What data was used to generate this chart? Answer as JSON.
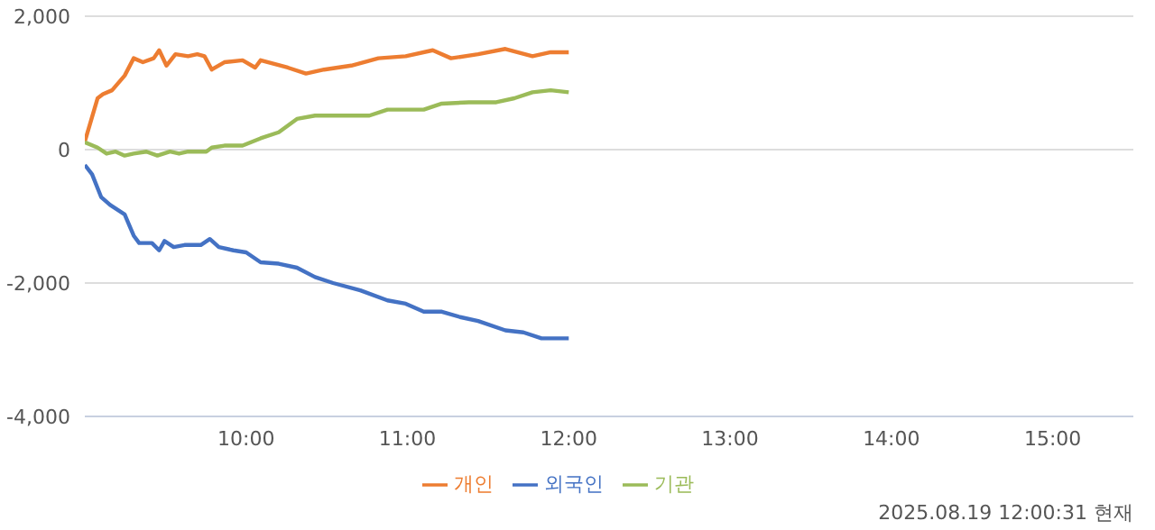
{
  "chart_data": {
    "type": "line",
    "xlim": [
      9,
      15.5
    ],
    "xticks": [
      {
        "value": 10,
        "label": "10:00"
      },
      {
        "value": 11,
        "label": "11:00"
      },
      {
        "value": 12,
        "label": "12:00"
      },
      {
        "value": 13,
        "label": "13:00"
      },
      {
        "value": 14,
        "label": "14:00"
      },
      {
        "value": 15,
        "label": "15:00"
      }
    ],
    "ylim": [
      -4000,
      2000
    ],
    "yticks": [
      {
        "value": -4000,
        "label": "-4,000"
      },
      {
        "value": -2000,
        "label": "-2,000"
      },
      0,
      {
        "value": 2000,
        "label": "2,000"
      }
    ],
    "grid": "y",
    "legend": "bottom",
    "marker": "none",
    "line_style": "solid",
    "series": [
      {
        "name": "개인",
        "color": "#ed7d31",
        "x": [
          9.0,
          9.079,
          9.112,
          9.169,
          9.247,
          9.303,
          9.36,
          9.427,
          9.461,
          9.506,
          9.562,
          9.64,
          9.697,
          9.742,
          9.787,
          9.865,
          9.978,
          10.056,
          10.09,
          10.258,
          10.371,
          10.483,
          10.652,
          10.82,
          10.989,
          11.157,
          11.27,
          11.438,
          11.607,
          11.775,
          11.888,
          12.0
        ],
        "values": [
          120,
          770,
          830,
          890,
          1110,
          1370,
          1310,
          1370,
          1490,
          1260,
          1430,
          1400,
          1430,
          1400,
          1200,
          1310,
          1340,
          1230,
          1340,
          1230,
          1140,
          1200,
          1260,
          1370,
          1400,
          1490,
          1370,
          1430,
          1510,
          1400,
          1460,
          1460
        ]
      },
      {
        "name": "외국인",
        "color": "#4472c4",
        "x": [
          9.0,
          9.045,
          9.101,
          9.157,
          9.247,
          9.303,
          9.337,
          9.416,
          9.461,
          9.494,
          9.551,
          9.618,
          9.719,
          9.775,
          9.831,
          9.921,
          10.0,
          10.09,
          10.202,
          10.315,
          10.427,
          10.539,
          10.708,
          10.876,
          10.989,
          11.101,
          11.213,
          11.326,
          11.438,
          11.607,
          11.719,
          11.831,
          12.0
        ],
        "values": [
          -230,
          -370,
          -710,
          -830,
          -970,
          -1290,
          -1400,
          -1400,
          -1510,
          -1370,
          -1460,
          -1430,
          -1430,
          -1340,
          -1460,
          -1510,
          -1540,
          -1690,
          -1710,
          -1770,
          -1910,
          -2000,
          -2110,
          -2260,
          -2310,
          -2430,
          -2430,
          -2510,
          -2570,
          -2710,
          -2740,
          -2830,
          -2830
        ]
      },
      {
        "name": "기관",
        "color": "#9bbb59",
        "x": [
          9.0,
          9.079,
          9.135,
          9.191,
          9.247,
          9.303,
          9.382,
          9.45,
          9.528,
          9.584,
          9.64,
          9.697,
          9.753,
          9.787,
          9.865,
          9.978,
          10.09,
          10.202,
          10.315,
          10.427,
          10.596,
          10.764,
          10.876,
          10.989,
          11.101,
          11.213,
          11.382,
          11.551,
          11.663,
          11.775,
          11.888,
          12.0
        ],
        "values": [
          110,
          30,
          -60,
          -30,
          -90,
          -60,
          -30,
          -90,
          -30,
          -60,
          -30,
          -30,
          -30,
          30,
          60,
          60,
          170,
          260,
          460,
          510,
          510,
          510,
          600,
          600,
          600,
          690,
          710,
          710,
          770,
          860,
          890,
          860
        ]
      }
    ],
    "annotations": [
      "2025.08.19 12:00:31 현재"
    ]
  }
}
